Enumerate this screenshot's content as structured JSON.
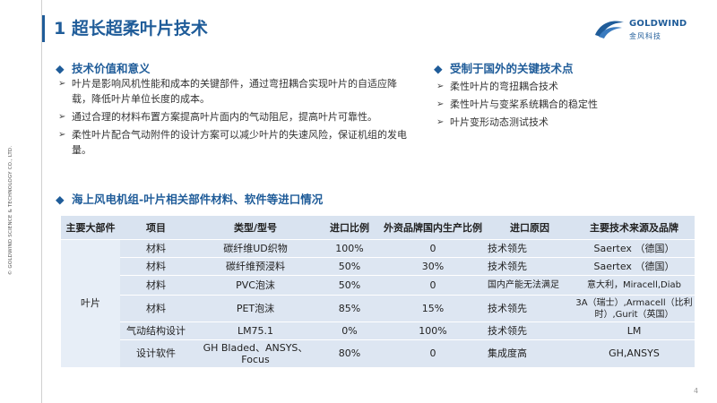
{
  "copyright": "© GOLDWIND SCIENCE & TECHNOLOGY CO., LTD.",
  "title": "1 超长超柔叶片技术",
  "logo": {
    "en": "GOLDWIND",
    "cn": "金风科技"
  },
  "left_section": {
    "heading": "技术价值和意义",
    "bullets": [
      "叶片是影响风机性能和成本的关键部件，通过弯扭耦合实现叶片的自适应降载，降低叶片单位长度的成本。",
      "通过合理的材料布置方案提高叶片面内的气动阻尼，提高叶片可靠性。",
      "柔性叶片配合气动附件的设计方案可以减少叶片的失速风险，保证机组的发电量。"
    ]
  },
  "right_section": {
    "heading": "受制于国外的关键技术点",
    "bullets": [
      "柔性叶片的弯扭耦合技术",
      "柔性叶片与变桨系统耦合的稳定性",
      "叶片变形动态测试技术"
    ]
  },
  "table_section": {
    "heading": "海上风电机组-叶片相关部件材料、软件等进口情况",
    "headers": [
      "主要大部件",
      "项目",
      "类型/型号",
      "进口比例",
      "外资品牌国内生产比例",
      "进口原因",
      "主要技术来源及品牌"
    ],
    "component": "叶片",
    "rows": [
      {
        "item": "材料",
        "type": "碳纤维UD织物",
        "ratio": "100%",
        "foreign": "0",
        "reason": "技术领先",
        "source": "Saertex （德国）"
      },
      {
        "item": "材料",
        "type": "碳纤维预浸料",
        "ratio": "50%",
        "foreign": "30%",
        "reason": "技术领先",
        "source": "Saertex （德国）"
      },
      {
        "item": "材料",
        "type": "PVC泡沫",
        "ratio": "50%",
        "foreign": "0",
        "reason": "国内产能无法满足",
        "source": "意大利，Miracell,Diab"
      },
      {
        "item": "材料",
        "type": "PET泡沫",
        "ratio": "85%",
        "foreign": "15%",
        "reason": "技术领先",
        "source": "3A（瑞士）,Armacell（比利时）,Gurit（英国）"
      },
      {
        "item": "气动结构设计",
        "type": "LM75.1",
        "ratio": "0%",
        "foreign": "100%",
        "reason": "技术领先",
        "source": "LM"
      },
      {
        "item": "设计软件",
        "type": "GH Bladed、ANSYS、Focus",
        "ratio": "80%",
        "foreign": "0",
        "reason": "集成度高",
        "source": "GH,ANSYS"
      }
    ]
  },
  "page_number": "4",
  "colors": {
    "accent": "#1f5c99",
    "table_bg": "#dde6f2"
  },
  "icons": {
    "bullet": "arrow-right-icon",
    "section": "diamond-icon"
  }
}
